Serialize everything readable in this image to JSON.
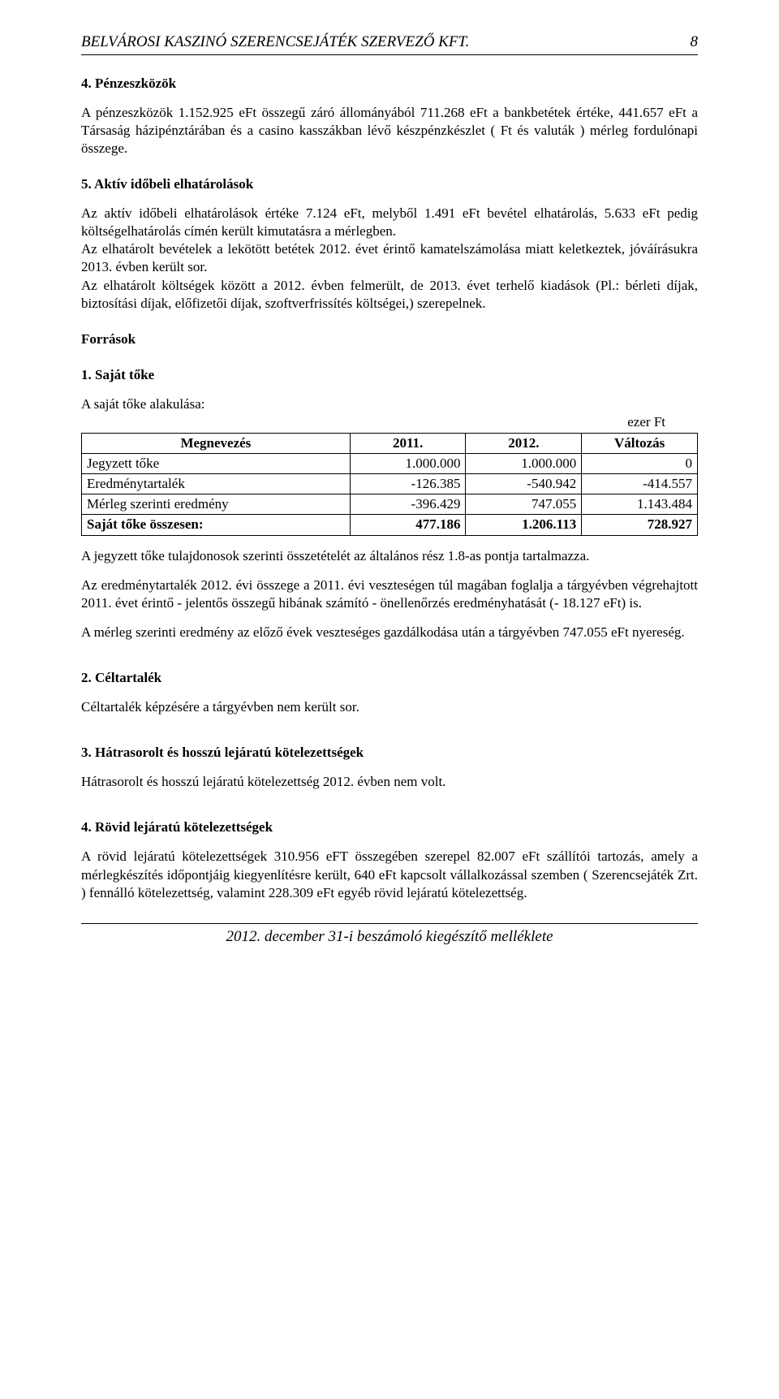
{
  "header": {
    "title": "BELVÁROSI KASZINÓ SZERENCSEJÁTÉK SZERVEZŐ KFT.",
    "page_number": "8"
  },
  "s4": {
    "title": "4. Pénzeszközök",
    "p1": "A pénzeszközök 1.152.925 eFt összegű záró állományából 711.268 eFt a bankbetétek értéke, 441.657 eFt a Társaság házipénztárában és a casino kasszákban lévő készpénzkészlet ( Ft és valuták ) mérleg fordulónapi összege."
  },
  "s5": {
    "title": "5. Aktív időbeli elhatárolások",
    "p1": "Az aktív időbeli elhatárolások értéke 7.124 eFt, melyből 1.491 eFt bevétel elhatárolás, 5.633 eFt pedig költségelhatárolás címén került kimutatásra a mérlegben.",
    "p2": "Az elhatárolt bevételek a lekötött betétek 2012. évet érintő kamatelszámolása miatt keletkeztek, jóváírásukra 2013. évben került sor.",
    "p3": "Az elhatárolt költségek között a 2012. évben felmerült, de 2013. évet terhelő kiadások (Pl.: bérleti díjak, biztosítási díjak, előfizetői díjak, szoftverfrissítés költségei,) szerepelnek."
  },
  "forrasok": {
    "title": "Források"
  },
  "s_f1": {
    "title": "1. Saját tőke",
    "lead": "A saját tőke alakulása:",
    "unit": "ezer Ft",
    "table": {
      "col0": "Megnevezés",
      "col1": "2011.",
      "col2": "2012.",
      "col3": "Változás",
      "rows": {
        "r1": {
          "label": "Jegyzett tőke",
          "y2011": "1.000.000",
          "y2012": "1.000.000",
          "chg": "0"
        },
        "r2": {
          "label": "Eredménytartalék",
          "y2011": "-126.385",
          "y2012": "-540.942",
          "chg": "-414.557"
        },
        "r3": {
          "label": "Mérleg szerinti eredmény",
          "y2011": "-396.429",
          "y2012": "747.055",
          "chg": "1.143.484"
        },
        "r4": {
          "label": "Saját tőke összesen:",
          "y2011": "477.186",
          "y2012": "1.206.113",
          "chg": "728.927"
        }
      }
    },
    "p_after1": "A jegyzett tőke tulajdonosok szerinti összetételét az általános rész 1.8-as pontja tartalmazza.",
    "p_after2": "Az eredménytartalék 2012. évi összege a 2011. évi veszteségen túl magában foglalja a tárgyévben végrehajtott 2011. évet érintő - jelentős összegű hibának számító - önellenőrzés eredményhatását (- 18.127 eFt) is.",
    "p_after3": "A mérleg szerinti eredmény az előző évek veszteséges gazdálkodása után a tárgyévben 747.055 eFt nyereség."
  },
  "s_f2": {
    "title": "2. Céltartalék",
    "p1": "Céltartalék képzésére a tárgyévben nem került sor."
  },
  "s_f3": {
    "title": "3. Hátrasorolt és hosszú lejáratú kötelezettségek",
    "p1": "Hátrasorolt és hosszú lejáratú kötelezettség 2012. évben nem volt."
  },
  "s_f4": {
    "title": "4.  Rövid lejáratú kötelezettségek",
    "p1": "A rövid lejáratú kötelezettségek 310.956 eFT összegében szerepel 82.007 eFt szállítói tartozás, amely a mérlegkészítés időpontjáig kiegyenlítésre került, 640 eFt kapcsolt vállalkozással szemben ( Szerencsejáték Zrt. ) fennálló kötelezettség, valamint 228.309 eFt egyéb rövid lejáratú kötelezettség."
  },
  "footer": {
    "text": "2012. december 31-i beszámoló kiegészítő melléklete"
  }
}
